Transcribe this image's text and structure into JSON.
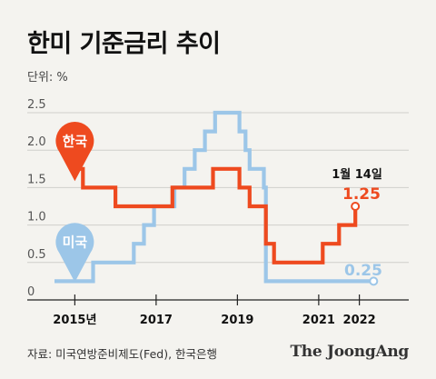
{
  "title": "한미 기준금리 추이",
  "unit_label": "단위: %",
  "source": "자료: 미국연방준비제도(Fed), 한국은행",
  "logo": "The JoongAng",
  "chart_data": {
    "type": "line",
    "step": true,
    "ylim": [
      0,
      2.5
    ],
    "xlim": [
      2015.0,
      2023.3
    ],
    "yticks": [
      {
        "value": 0,
        "label": "0"
      },
      {
        "value": 0.5,
        "label": "0.5"
      },
      {
        "value": 1.0,
        "label": "1.0"
      },
      {
        "value": 1.5,
        "label": "1.5"
      },
      {
        "value": 2.0,
        "label": "2.0"
      },
      {
        "value": 2.5,
        "label": "2.5"
      }
    ],
    "xticks": [
      {
        "value": 2015.5,
        "label": "2015년"
      },
      {
        "value": 2017.5,
        "label": "2017"
      },
      {
        "value": 2019.5,
        "label": "2019"
      },
      {
        "value": 2021.5,
        "label": "2021"
      },
      {
        "value": 2022.5,
        "label": "2022"
      }
    ],
    "grid": "horizontal",
    "series": [
      {
        "name": "한국",
        "color": "#ee4a1f",
        "points": [
          [
            2015.5,
            1.75
          ],
          [
            2015.7,
            1.75
          ],
          [
            2015.7,
            1.5
          ],
          [
            2016.5,
            1.5
          ],
          [
            2016.5,
            1.25
          ],
          [
            2017.9,
            1.25
          ],
          [
            2017.9,
            1.5
          ],
          [
            2018.9,
            1.5
          ],
          [
            2018.9,
            1.75
          ],
          [
            2019.55,
            1.75
          ],
          [
            2019.55,
            1.5
          ],
          [
            2019.8,
            1.5
          ],
          [
            2019.8,
            1.25
          ],
          [
            2020.2,
            1.25
          ],
          [
            2020.2,
            0.75
          ],
          [
            2020.4,
            0.75
          ],
          [
            2020.4,
            0.5
          ],
          [
            2021.6,
            0.5
          ],
          [
            2021.6,
            0.75
          ],
          [
            2022.0,
            0.75
          ],
          [
            2022.0,
            1.0
          ],
          [
            2022.4,
            1.0
          ],
          [
            2022.4,
            1.25
          ]
        ]
      },
      {
        "name": "미국",
        "color": "#9cc6e8",
        "points": [
          [
            2015.0,
            0.25
          ],
          [
            2015.95,
            0.25
          ],
          [
            2015.95,
            0.5
          ],
          [
            2016.95,
            0.5
          ],
          [
            2016.95,
            0.75
          ],
          [
            2017.2,
            0.75
          ],
          [
            2017.2,
            1.0
          ],
          [
            2017.45,
            1.0
          ],
          [
            2017.45,
            1.25
          ],
          [
            2017.95,
            1.25
          ],
          [
            2017.95,
            1.5
          ],
          [
            2018.2,
            1.5
          ],
          [
            2018.2,
            1.75
          ],
          [
            2018.45,
            1.75
          ],
          [
            2018.45,
            2.0
          ],
          [
            2018.7,
            2.0
          ],
          [
            2018.7,
            2.25
          ],
          [
            2018.95,
            2.25
          ],
          [
            2018.95,
            2.5
          ],
          [
            2019.55,
            2.5
          ],
          [
            2019.55,
            2.25
          ],
          [
            2019.7,
            2.25
          ],
          [
            2019.7,
            2.0
          ],
          [
            2019.8,
            2.0
          ],
          [
            2019.8,
            1.75
          ],
          [
            2020.15,
            1.75
          ],
          [
            2020.15,
            1.5
          ],
          [
            2020.2,
            1.5
          ],
          [
            2020.2,
            0.25
          ],
          [
            2022.85,
            0.25
          ]
        ]
      }
    ],
    "markers": [
      {
        "label": "한국",
        "color": "#ee4a1f",
        "x": 2015.5,
        "y": 2.12
      },
      {
        "label": "미국",
        "color": "#9cc6e8",
        "x": 2015.5,
        "y": 0.77
      }
    ],
    "annotations": {
      "date": "1월 14일",
      "korea_value": "1.25",
      "us_value": "0.25"
    }
  }
}
